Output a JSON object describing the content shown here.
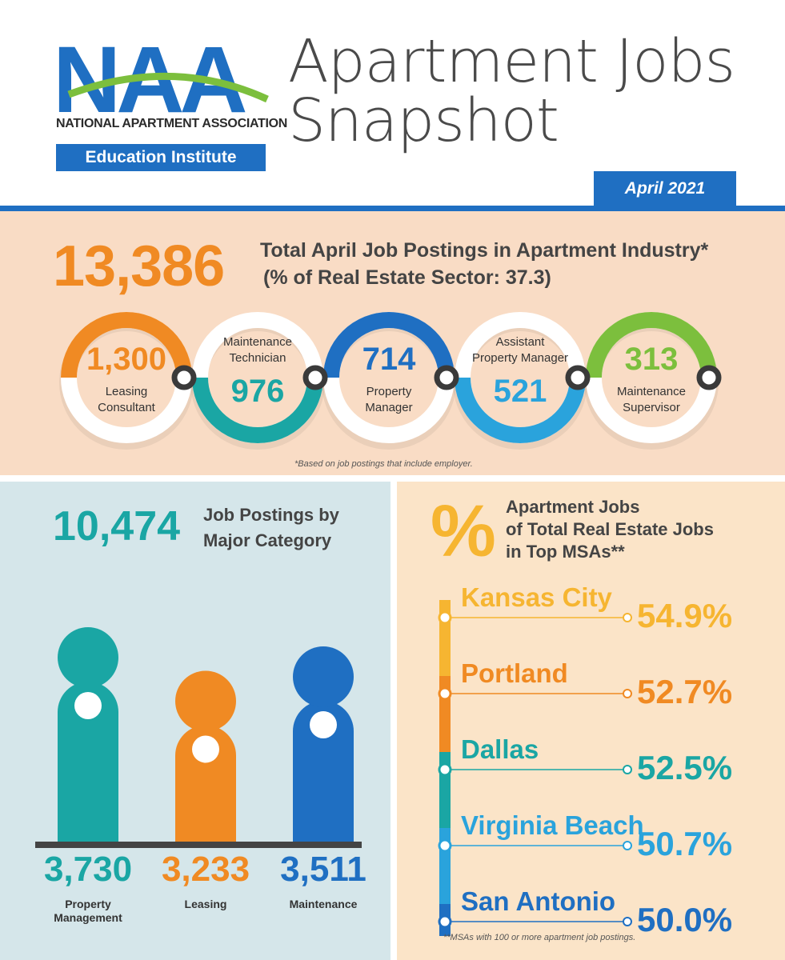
{
  "header": {
    "logo_text": "NAA",
    "logo_org": "NATIONAL APARTMENT ASSOCIATION",
    "logo_edu": "Education Institute",
    "title_line1": "Apartment Jobs",
    "title_line2": "Snapshot",
    "date": "April 2021"
  },
  "total": {
    "value": "13,386",
    "label_line1": "Total April Job Postings in Apartment Industry*",
    "label_line2": "(% of Real Estate Sector: 37.3)",
    "footnote": "*Based on job postings that include employer."
  },
  "roles": [
    {
      "value": "1,300",
      "label": "Leasing Consultant",
      "color": "#f08a23"
    },
    {
      "value": "976",
      "label": "Maintenance Technician",
      "color": "#1aa6a4"
    },
    {
      "value": "714",
      "label": "Property Manager",
      "color": "#1f6fc2"
    },
    {
      "value": "521",
      "label": "Assistant Property Manager",
      "color": "#2aa3dc"
    },
    {
      "value": "313",
      "label": "Maintenance Supervisor",
      "color": "#7cbf3d"
    }
  ],
  "categories": {
    "total": "10,474",
    "label_line1": "Job Postings by",
    "label_line2": "Major Category"
  },
  "chart_data": {
    "type": "bar",
    "categories": [
      "Property Management",
      "Leasing",
      "Maintenance"
    ],
    "values": [
      3730,
      3233,
      3511
    ],
    "value_labels": [
      "3,730",
      "3,233",
      "3,511"
    ],
    "label_lines": [
      [
        "Property",
        "Management"
      ],
      [
        "Leasing"
      ],
      [
        "Maintenance"
      ]
    ],
    "colors": [
      "#1aa6a4",
      "#f08a23",
      "#1f6fc2"
    ]
  },
  "msa": {
    "symbol": "%",
    "title_line1": "Apartment Jobs",
    "title_line2": "of Total Real Estate Jobs",
    "title_line3": "in Top MSAs**",
    "items": [
      {
        "city": "Kansas City",
        "value": "54.9%",
        "color": "#f6b531"
      },
      {
        "city": "Portland",
        "value": "52.7%",
        "color": "#f08a23"
      },
      {
        "city": "Dallas",
        "value": "52.5%",
        "color": "#1aa6a4"
      },
      {
        "city": "Virginia Beach",
        "value": "50.7%",
        "color": "#2aa3dc"
      },
      {
        "city": "San Antonio",
        "value": "50.0%",
        "color": "#1f6fc2"
      }
    ],
    "footnote": "**MSAs with 100 or more apartment job postings."
  }
}
